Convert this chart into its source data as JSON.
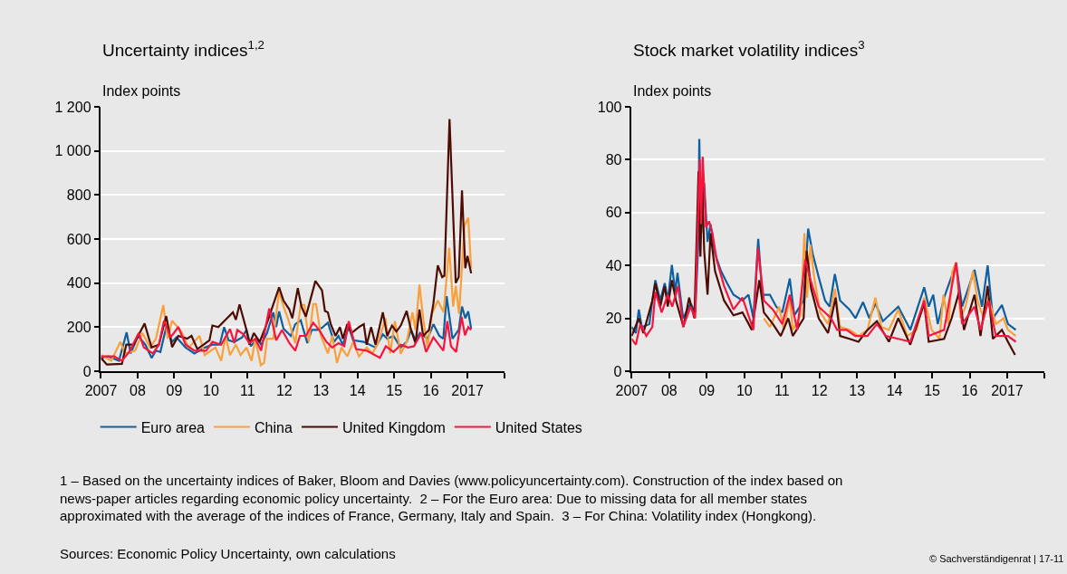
{
  "chart_data": [
    {
      "type": "line",
      "title": "Uncertainty indices$^{1,2}$",
      "ylabel": "Index points",
      "xlim": [
        2007,
        2018
      ],
      "xticks": [
        2007,
        {
          "value": 2008,
          "label": "08"
        },
        {
          "value": 2009,
          "label": "09"
        },
        {
          "value": 2010,
          "label": "10"
        },
        {
          "value": 2011,
          "label": "11"
        },
        {
          "value": 2012,
          "label": "12"
        },
        {
          "value": 2013,
          "label": "13"
        },
        {
          "value": 2014,
          "label": "14"
        },
        {
          "value": 2015,
          "label": "15"
        },
        {
          "value": 2016,
          "label": "16"
        },
        2017,
        {
          "value": 2018,
          "label": null
        }
      ],
      "ylim": [
        0,
        1200
      ],
      "yticks": [
        0,
        200,
        400,
        600,
        800,
        {
          "value": 1000,
          "label": "1 000"
        },
        {
          "value": 1200,
          "label": "1 200"
        }
      ],
      "grid": "y",
      "legend": "bottom",
      "series": [
        {
          "name": "Euro area",
          "color": "#0d5f9f",
          "x": [
            2007.0,
            2007.2,
            2007.49,
            2007.7,
            2007.81,
            2008.01,
            2008.21,
            2008.38,
            2008.5,
            2008.62,
            2008.78,
            2008.94,
            2009.06,
            2009.31,
            2009.55,
            2009.83,
            2010.04,
            2010.24,
            2010.36,
            2010.48,
            2010.64,
            2010.85,
            2010.97,
            2011.09,
            2011.25,
            2011.37,
            2011.53,
            2011.7,
            2011.78,
            2011.86,
            2011.98,
            2012.18,
            2012.3,
            2012.45,
            2012.63,
            2012.75,
            2012.91,
            2013.03,
            2013.19,
            2013.36,
            2013.48,
            2013.6,
            2013.76,
            2013.88,
            2014.17,
            2014.49,
            2014.69,
            2014.81,
            2014.98,
            2015.18,
            2015.34,
            2015.46,
            2015.58,
            2015.7,
            2015.91,
            2016.07,
            2016.23,
            2016.34,
            2016.43,
            2016.59,
            2016.76,
            2016.85,
            2016.94,
            2017.02,
            2017.1
          ],
          "values": [
            60,
            67,
            47,
            176,
            80,
            160,
            120,
            60,
            93,
            87,
            200,
            133,
            153,
            107,
            80,
            107,
            120,
            120,
            200,
            140,
            133,
            153,
            187,
            113,
            147,
            120,
            173,
            267,
            200,
            271,
            193,
            160,
            213,
            231,
            127,
            187,
            187,
            197,
            220,
            133,
            160,
            120,
            200,
            140,
            133,
            107,
            167,
            147,
            160,
            107,
            133,
            187,
            140,
            173,
            147,
            213,
            160,
            147,
            340,
            147,
            187,
            293,
            240,
            271,
            193
          ]
        },
        {
          "name": "China",
          "color": "#f9a03c",
          "x": [
            2007.0,
            2007.28,
            2007.53,
            2007.65,
            2007.93,
            2008.13,
            2008.34,
            2008.5,
            2008.7,
            2008.82,
            2008.94,
            2009.19,
            2009.39,
            2009.69,
            2009.83,
            2010.12,
            2010.28,
            2010.4,
            2010.52,
            2010.68,
            2010.81,
            2010.97,
            2011.11,
            2011.21,
            2011.36,
            2011.45,
            2011.53,
            2011.7,
            2011.86,
            2011.98,
            2012.1,
            2012.3,
            2012.45,
            2012.55,
            2012.67,
            2012.79,
            2012.87,
            2013.0,
            2013.19,
            2013.31,
            2013.44,
            2013.56,
            2013.72,
            2013.88,
            2014.04,
            2014.25,
            2014.41,
            2014.57,
            2014.76,
            2014.89,
            2015.02,
            2015.18,
            2015.34,
            2015.5,
            2015.58,
            2015.69,
            2015.79,
            2015.91,
            2016.03,
            2016.19,
            2016.35,
            2016.5,
            2016.61,
            2016.68,
            2016.77,
            2016.92,
            2017.02,
            2017.1
          ],
          "values": [
            73,
            47,
            133,
            80,
            93,
            173,
            107,
            147,
            300,
            147,
            229,
            180,
            107,
            160,
            73,
            107,
            47,
            160,
            73,
            120,
            73,
            107,
            47,
            147,
            27,
            37,
            147,
            147,
            363,
            293,
            240,
            127,
            300,
            300,
            133,
            304,
            304,
            160,
            80,
            160,
            37,
            107,
            67,
            133,
            67,
            107,
            80,
            133,
            240,
            80,
            227,
            80,
            133,
            267,
            187,
            393,
            240,
            107,
            260,
            320,
            267,
            560,
            293,
            387,
            260,
            660,
            696,
            467
          ]
        },
        {
          "name": "United Kingdom",
          "color": "#4d0c02",
          "x": [
            2007.0,
            2007.16,
            2007.57,
            2007.69,
            2007.89,
            2008.19,
            2008.38,
            2008.58,
            2008.78,
            2008.94,
            2009.11,
            2009.35,
            2009.47,
            2009.63,
            2009.96,
            2010.04,
            2010.2,
            2010.44,
            2010.6,
            2010.68,
            2010.78,
            2010.97,
            2011.05,
            2011.17,
            2011.33,
            2011.49,
            2011.86,
            2011.98,
            2012.14,
            2012.22,
            2012.37,
            2012.47,
            2012.59,
            2012.85,
            2013.03,
            2013.11,
            2013.19,
            2013.27,
            2013.4,
            2013.52,
            2013.6,
            2013.72,
            2013.84,
            2014.04,
            2014.17,
            2014.25,
            2014.37,
            2014.49,
            2014.69,
            2014.81,
            2014.94,
            2015.06,
            2015.18,
            2015.34,
            2015.46,
            2015.58,
            2015.69,
            2015.79,
            2015.95,
            2016.07,
            2016.19,
            2016.31,
            2016.37,
            2016.51,
            2016.68,
            2016.76,
            2016.85,
            2016.94,
            2017.0,
            2017.1
          ],
          "values": [
            60,
            30,
            33,
            120,
            120,
            216,
            107,
            120,
            250,
            109,
            160,
            147,
            160,
            100,
            140,
            207,
            200,
            240,
            267,
            233,
            303,
            187,
            120,
            173,
            133,
            200,
            380,
            320,
            280,
            240,
            377,
            293,
            247,
            409,
            367,
            273,
            267,
            213,
            160,
            200,
            147,
            213,
            173,
            200,
            213,
            120,
            200,
            120,
            267,
            160,
            207,
            180,
            207,
            273,
            187,
            127,
            280,
            160,
            187,
            307,
            480,
            427,
            433,
            1144,
            400,
            427,
            820,
            467,
            523,
            444
          ]
        },
        {
          "name": "United States",
          "color": "#f5163f",
          "x": [
            2007.0,
            2007.36,
            2007.57,
            2007.77,
            2008.03,
            2008.17,
            2008.42,
            2008.58,
            2008.72,
            2008.9,
            2009.11,
            2009.31,
            2009.55,
            2009.87,
            2010.04,
            2010.28,
            2010.52,
            2010.64,
            2010.72,
            2010.89,
            2011.05,
            2011.21,
            2011.37,
            2011.59,
            2011.78,
            2011.94,
            2012.14,
            2012.3,
            2012.43,
            2012.59,
            2012.79,
            2012.95,
            2013.15,
            2013.31,
            2013.48,
            2013.64,
            2013.76,
            2013.96,
            2014.25,
            2014.61,
            2014.77,
            2014.98,
            2015.18,
            2015.38,
            2015.54,
            2015.74,
            2015.87,
            2016.07,
            2016.34,
            2016.45,
            2016.55,
            2016.69,
            2016.84,
            2016.93,
            2017.02,
            2017.1
          ],
          "values": [
            67,
            67,
            47,
            87,
            173,
            107,
            80,
            120,
            229,
            153,
            200,
            120,
            93,
            93,
            133,
            120,
            191,
            127,
            187,
            167,
            127,
            147,
            93,
            284,
            140,
            187,
            127,
            93,
            160,
            160,
            220,
            187,
            133,
            107,
            127,
            113,
            227,
            100,
            93,
            60,
            113,
            87,
            120,
            107,
            113,
            173,
            87,
            153,
            93,
            227,
            113,
            87,
            247,
            163,
            200,
            187
          ]
        }
      ],
      "annotations": [
        "1 – Based on the uncertainty indices of Baker, Bloom and Davies (www.policyuncertainty.com). Construction of the index based on news-paper articles regarding economic policy uncertainty.  2 – For the Euro area: Due to missing data for all member states approximated with the average of the indices of France, Germany, Italy and Spain.  3 – For China: Volatility index (Hongkong).",
        "Sources: Economic Policy Uncertainty, own calculations",
        "© Sachverständigenrat | 17-11"
      ]
    },
    {
      "type": "line",
      "title": "Stock market volatility indices$^{3}$",
      "ylabel": "Index points",
      "xlim": [
        2007,
        2018
      ],
      "xticks": [
        2007,
        {
          "value": 2008,
          "label": "08"
        },
        {
          "value": 2009,
          "label": "09"
        },
        {
          "value": 2010,
          "label": "10"
        },
        {
          "value": 2011,
          "label": "11"
        },
        {
          "value": 2012,
          "label": "12"
        },
        {
          "value": 2013,
          "label": "13"
        },
        {
          "value": 2014,
          "label": "14"
        },
        {
          "value": 2015,
          "label": "15"
        },
        {
          "value": 2016,
          "label": "16"
        },
        2017,
        {
          "value": 2018,
          "label": null
        }
      ],
      "ylim": [
        0,
        100
      ],
      "yticks": [
        0,
        20,
        40,
        60,
        80,
        100
      ],
      "grid": "y",
      "series": [
        {
          "color": "#0d5f9f",
          "x": [
            2007.0,
            2007.11,
            2007.19,
            2007.27,
            2007.47,
            2007.55,
            2007.63,
            2007.76,
            2007.88,
            2007.96,
            2008.07,
            2008.16,
            2008.22,
            2008.37,
            2008.57,
            2008.69,
            2008.77,
            2008.8,
            2008.85,
            2008.93,
            2009.02,
            2009.1,
            2009.22,
            2009.38,
            2009.54,
            2009.71,
            2009.95,
            2010.11,
            2010.24,
            2010.37,
            2010.48,
            2010.68,
            2010.85,
            2011.01,
            2011.21,
            2011.33,
            2011.58,
            2011.7,
            2011.82,
            2011.98,
            2012.15,
            2012.27,
            2012.41,
            2012.55,
            2012.8,
            2012.96,
            2013.16,
            2013.33,
            2013.49,
            2013.69,
            2014.1,
            2014.42,
            2014.79,
            2014.91,
            2015.03,
            2015.15,
            2015.32,
            2015.64,
            2015.8,
            2016.13,
            2016.33,
            2016.48,
            2016.62,
            2016.86,
            2017.02,
            2017.23
          ],
          "values": [
            16.7,
            14.4,
            23.3,
            16.7,
            17.8,
            26.7,
            34.4,
            26.7,
            33.3,
            26.7,
            40.2,
            30,
            37.2,
            20,
            25.6,
            22.2,
            46.7,
            87.8,
            52.2,
            71.1,
            48.9,
            55.6,
            44.4,
            37.8,
            33.3,
            28.9,
            26.7,
            28.9,
            20,
            50,
            28.9,
            28.9,
            24.4,
            22.2,
            35,
            21.1,
            26.7,
            53.9,
            44.4,
            35.6,
            26.7,
            24.4,
            36.7,
            26.7,
            23.3,
            20,
            26.1,
            20,
            25.6,
            18.9,
            24.4,
            15.6,
            31.7,
            24.4,
            28.9,
            17.8,
            27.8,
            40.6,
            24.4,
            38.3,
            24.4,
            40,
            20,
            25,
            17.8,
            15.6
          ]
        },
        {
          "color": "#f9a03c",
          "x": [
            2010.52,
            2010.68,
            2010.93,
            2011.05,
            2011.21,
            2011.29,
            2011.5,
            2011.6,
            2011.67,
            2011.76,
            2011.86,
            2012.02,
            2012.23,
            2012.41,
            2012.55,
            2012.8,
            2013.04,
            2013.28,
            2013.49,
            2013.65,
            2013.85,
            2014.1,
            2014.34,
            2014.59,
            2014.79,
            2014.99,
            2015.2,
            2015.3,
            2015.44,
            2015.54,
            2015.64,
            2015.76,
            2015.89,
            2016.09,
            2016.21,
            2016.37,
            2016.5,
            2016.7,
            2016.9,
            2017.02,
            2017.23
          ],
          "values": [
            20,
            16.7,
            24.4,
            15.6,
            27.8,
            15.6,
            21.1,
            52.2,
            27.8,
            47.8,
            35.6,
            22.2,
            17.8,
            31.1,
            16.7,
            15.6,
            13.3,
            15.6,
            27.8,
            16.7,
            15.6,
            23.3,
            13.3,
            15.6,
            27.8,
            15.6,
            12.2,
            28.9,
            17.8,
            37.8,
            41.1,
            20,
            24.4,
            37.8,
            26.7,
            20,
            27.8,
            17.8,
            20,
            15.6,
            13.3
          ]
        },
        {
          "color": "#4d0c02",
          "x": [
            2007.0,
            2007.19,
            2007.31,
            2007.55,
            2007.63,
            2007.76,
            2007.88,
            2007.96,
            2008.07,
            2008.18,
            2008.38,
            2008.53,
            2008.67,
            2008.78,
            2008.83,
            2008.88,
            2008.93,
            2009.02,
            2009.1,
            2009.22,
            2009.46,
            2009.71,
            2009.95,
            2010.2,
            2010.4,
            2010.52,
            2010.76,
            2010.97,
            2011.17,
            2011.29,
            2011.58,
            2011.66,
            2011.78,
            2011.98,
            2012.23,
            2012.43,
            2012.55,
            2012.8,
            2013.04,
            2013.28,
            2013.53,
            2013.85,
            2014.1,
            2014.42,
            2014.79,
            2014.91,
            2015.32,
            2015.52,
            2015.72,
            2015.85,
            2016.13,
            2016.29,
            2016.48,
            2016.62,
            2016.86,
            2017.02,
            2017.21
          ],
          "values": [
            13.3,
            20,
            14.4,
            26.7,
            33.3,
            24.4,
            32.2,
            24.4,
            34.4,
            26.7,
            16.7,
            27.8,
            20,
            75.6,
            43.3,
            70,
            45.6,
            28.9,
            52.2,
            37.8,
            26.7,
            21.1,
            22.2,
            15.6,
            34.4,
            22.2,
            17.8,
            13.3,
            20,
            13.3,
            20,
            45.6,
            31.1,
            20,
            14.4,
            27.8,
            13.3,
            12.2,
            11.1,
            15.6,
            18.9,
            11.1,
            20,
            10,
            25.6,
            11.1,
            12.2,
            20,
            30,
            15.6,
            28.9,
            13.3,
            32.2,
            12.2,
            15.6,
            11.1,
            6.1
          ]
        },
        {
          "color": "#f5163f",
          "x": [
            2007.0,
            2007.11,
            2007.23,
            2007.39,
            2007.55,
            2007.63,
            2007.8,
            2007.96,
            2008.08,
            2008.24,
            2008.37,
            2008.57,
            2008.69,
            2008.81,
            2008.85,
            2008.89,
            2008.98,
            2009.06,
            2009.15,
            2009.26,
            2009.46,
            2009.71,
            2009.95,
            2010.24,
            2010.36,
            2010.52,
            2010.76,
            2011.01,
            2011.21,
            2011.41,
            2011.62,
            2011.74,
            2011.98,
            2012.31,
            2012.47,
            2012.72,
            2012.96,
            2013.28,
            2013.53,
            2013.77,
            2014.1,
            2014.42,
            2014.79,
            2014.91,
            2015.32,
            2015.64,
            2015.8,
            2016.13,
            2016.29,
            2016.5,
            2016.7,
            2017.02,
            2017.23
          ],
          "values": [
            12.2,
            10,
            17.8,
            13.3,
            16.7,
            30,
            22.2,
            28.9,
            24.4,
            32.2,
            16.7,
            24.4,
            20,
            80,
            55.6,
            81.1,
            54.4,
            56.7,
            52.2,
            42.2,
            32.2,
            23.3,
            27.8,
            15.6,
            46.7,
            26.7,
            23.3,
            17.8,
            28.9,
            15.6,
            42.2,
            35.6,
            24.4,
            20,
            15.6,
            15.6,
            13.3,
            13.3,
            17.8,
            13.3,
            12.2,
            11.1,
            26.7,
            13.3,
            15.6,
            41.1,
            17.8,
            24.4,
            15.6,
            26.7,
            13.3,
            13.3,
            11.1
          ]
        }
      ]
    }
  ]
}
